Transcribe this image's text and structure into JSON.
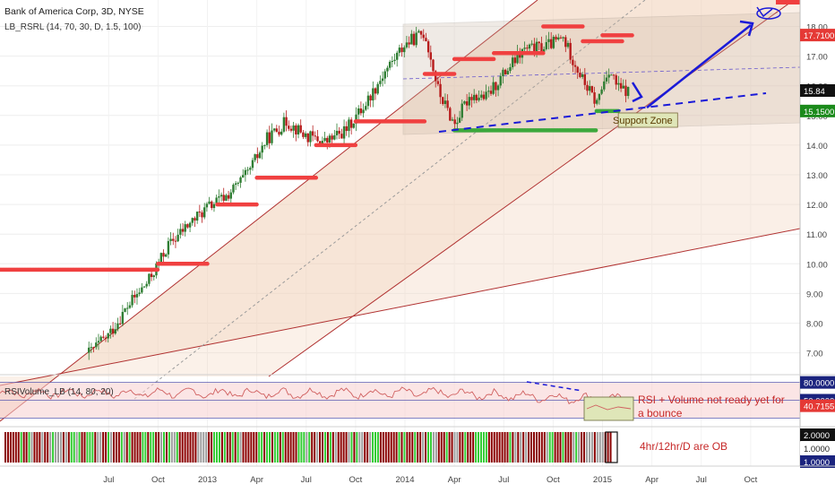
{
  "header": {
    "title": "Bank of America Corp, 3D, NYSE",
    "indicator": "LB_RSRL (14, 70, 30, D, 1.5, 100)"
  },
  "colors": {
    "up": "#2e7d32",
    "down": "#b71c1c",
    "resistance": "#f04040",
    "support": "#3ca83c",
    "annotation_blue": "#1a1ad8",
    "channel_red": "#b03030",
    "rsi_line": "#d06060",
    "price_badge_red": "#e53935",
    "price_badge_dark": "#111111",
    "price_badge_green": "#1b8a1b",
    "rsi_badge_navy": "#1a237e"
  },
  "chart_data": [
    {
      "type": "line",
      "title": "Bank of America Corp, 3D, NYSE",
      "series_kind": "candlestick (3-day)",
      "x_ticks": [
        "Jul",
        "Oct",
        "2013",
        "Apr",
        "Jul",
        "Oct",
        "2014",
        "Apr",
        "Jul",
        "Oct",
        "2015",
        "Apr",
        "Jul",
        "Oct"
      ],
      "y_ticks": [
        7.0,
        8.0,
        9.0,
        10.0,
        11.0,
        12.0,
        13.0,
        14.0,
        15.0,
        16.0,
        17.0,
        18.0
      ],
      "ylim": [
        6.4,
        18.5
      ],
      "price_x": [
        2012.45,
        2012.55,
        2012.65,
        2012.75,
        2012.85,
        2012.95,
        2013.05,
        2013.15,
        2013.25,
        2013.35,
        2013.45,
        2013.55,
        2013.65,
        2013.75,
        2013.85,
        2013.95,
        2014.05,
        2014.15,
        2014.22,
        2014.3,
        2014.38,
        2014.46,
        2014.55,
        2014.65,
        2014.75,
        2014.85,
        2014.95,
        2015.02,
        2015.08,
        2015.13,
        2015.18
      ],
      "price_y": [
        7.0,
        7.6,
        8.6,
        9.4,
        10.6,
        11.3,
        11.9,
        12.3,
        13.0,
        14.2,
        14.8,
        14.3,
        14.1,
        14.5,
        15.4,
        16.5,
        17.4,
        17.8,
        15.8,
        14.7,
        15.7,
        15.6,
        16.4,
        17.2,
        17.3,
        17.6,
        16.2,
        15.4,
        16.6,
        15.9,
        15.8
      ],
      "resistance_levels": [
        {
          "x": [
            2012.0,
            2012.8
          ],
          "y": 9.8
        },
        {
          "x": [
            2012.8,
            2013.05
          ],
          "y": 10.0
        },
        {
          "x": [
            2013.1,
            2013.3
          ],
          "y": 12.0
        },
        {
          "x": [
            2013.3,
            2013.6
          ],
          "y": 12.9
        },
        {
          "x": [
            2013.6,
            2013.8
          ],
          "y": 14.0
        },
        {
          "x": [
            2013.8,
            2014.15
          ],
          "y": 14.8
        },
        {
          "x": [
            2014.15,
            2014.3
          ],
          "y": 16.4
        },
        {
          "x": [
            2014.3,
            2014.5
          ],
          "y": 16.9
        },
        {
          "x": [
            2014.5,
            2014.75
          ],
          "y": 17.1
        },
        {
          "x": [
            2014.75,
            2014.95
          ],
          "y": 18.0
        },
        {
          "x": [
            2014.95,
            2015.15
          ],
          "y": 17.5
        },
        {
          "x": [
            2015.05,
            2015.2
          ],
          "y": 17.7
        }
      ],
      "support_levels": [
        {
          "x": [
            2014.3,
            2015.02
          ],
          "y": 14.5
        },
        {
          "x": [
            2015.02,
            2015.13
          ],
          "y": 15.15
        }
      ],
      "support_zone": {
        "x": [
          2015.13,
          2015.43
        ],
        "y": [
          14.8,
          15.1
        ],
        "label": "Support Zone"
      },
      "price_badges": [
        {
          "value": "17.7100",
          "y": 17.71,
          "style": "red"
        },
        {
          "value": "15.84",
          "y": 15.84,
          "style": "dark"
        },
        {
          "value": "15.1500",
          "y": 15.15,
          "style": "green"
        }
      ],
      "grid": true
    },
    {
      "type": "line",
      "title": "RSIVolume_LB (14, 80, 20)",
      "ylim": [
        10,
        90
      ],
      "levels": [
        80,
        50,
        20
      ],
      "badges": [
        {
          "value": "80.0000",
          "style": "navy"
        },
        {
          "value": "50.0000",
          "style": "navy"
        },
        {
          "value": "40.7155",
          "style": "red"
        }
      ],
      "annotation": "RSI + Volume not ready yet for a bounce"
    },
    {
      "type": "bar",
      "title": "",
      "badges": [
        {
          "value": "2.0000",
          "style": "dark"
        },
        {
          "value": "1.0000",
          "style": "plain"
        },
        {
          "value": "1.0000",
          "style": "navy"
        }
      ],
      "annotation": "4hr/12hr/D are OB"
    }
  ]
}
